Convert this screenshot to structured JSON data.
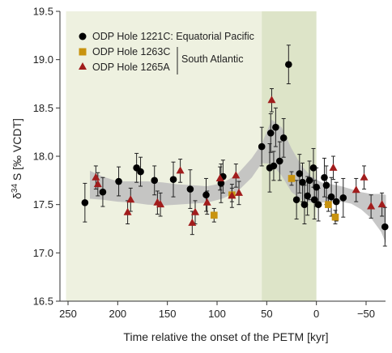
{
  "chart_data": {
    "type": "scatter",
    "xlabel": "Time relative the onset of the PETM [kyr]",
    "ylabel_main": "δ",
    "ylabel_sup": "34",
    "ylabel_rest": " S [‰ VCDT]",
    "xlim": [
      250,
      -55
    ],
    "ylim": [
      16.5,
      19.5
    ],
    "x_ticks": [
      250,
      200,
      150,
      100,
      50,
      0,
      -50
    ],
    "x_tick_labels": [
      "250",
      "200",
      "150",
      "100",
      "50",
      "0",
      "−50"
    ],
    "y_ticks": [
      16.5,
      17.0,
      17.5,
      18.0,
      18.5,
      19.0,
      19.5
    ],
    "y_tick_labels": [
      "16.5",
      "17.0",
      "17.5",
      "18.0",
      "18.5",
      "19.0",
      "19.5"
    ],
    "shaded_regions": [
      {
        "x_from": 252,
        "x_to": 55,
        "color": "#eef1e0"
      },
      {
        "x_from": 55,
        "x_to": 0,
        "color": "#dde4c8"
      }
    ],
    "legend": {
      "position": "top-left",
      "group_label": "South Atlantic",
      "entries": [
        {
          "label": "ODP Hole 1221C: Equatorial Pacific",
          "marker": "circle",
          "color": "#000000"
        },
        {
          "label": "ODP Hole 1263C",
          "marker": "square",
          "color": "#c8930f"
        },
        {
          "label": "ODP Hole 1265A",
          "marker": "triangle",
          "color": "#a11c1c"
        }
      ]
    },
    "series": [
      {
        "name": "ODP Hole 1221C: Equatorial Pacific",
        "marker": "circle",
        "color": "#000000",
        "points": [
          {
            "x": 233,
            "y": 17.52,
            "err": 0.2
          },
          {
            "x": 215,
            "y": 17.63,
            "err": 0.15
          },
          {
            "x": 199,
            "y": 17.74,
            "err": 0.15
          },
          {
            "x": 181,
            "y": 17.88,
            "err": 0.15
          },
          {
            "x": 177,
            "y": 17.84,
            "err": 0.15
          },
          {
            "x": 163,
            "y": 17.75,
            "err": 0.15
          },
          {
            "x": 144,
            "y": 17.76,
            "err": 0.18
          },
          {
            "x": 127,
            "y": 17.66,
            "err": 0.2
          },
          {
            "x": 111,
            "y": 17.6,
            "err": 0.17
          },
          {
            "x": 96,
            "y": 17.72,
            "err": 0.2
          },
          {
            "x": 94,
            "y": 17.79,
            "err": 0.17
          },
          {
            "x": 55,
            "y": 18.1,
            "err": 0.2
          },
          {
            "x": 47,
            "y": 17.88,
            "err": 0.25
          },
          {
            "x": 46,
            "y": 18.24,
            "err": 0.2
          },
          {
            "x": 43,
            "y": 17.9,
            "err": 0.15
          },
          {
            "x": 41,
            "y": 18.3,
            "err": 0.2
          },
          {
            "x": 37,
            "y": 17.95,
            "err": 0.2
          },
          {
            "x": 33,
            "y": 18.19,
            "err": 0.2
          },
          {
            "x": 28,
            "y": 18.95,
            "err": 0.2
          },
          {
            "x": 20,
            "y": 17.55,
            "err": 0.2
          },
          {
            "x": 17,
            "y": 17.82,
            "err": 0.2
          },
          {
            "x": 14,
            "y": 17.73,
            "err": 0.2
          },
          {
            "x": 12,
            "y": 17.5,
            "err": 0.2
          },
          {
            "x": 9,
            "y": 17.59,
            "err": 0.2
          },
          {
            "x": 7,
            "y": 17.75,
            "err": 0.2
          },
          {
            "x": 3,
            "y": 17.88,
            "err": 0.2
          },
          {
            "x": 2,
            "y": 17.55,
            "err": 0.2
          },
          {
            "x": 0,
            "y": 17.68,
            "err": 0.2
          },
          {
            "x": -2,
            "y": 17.5,
            "err": 0.17
          },
          {
            "x": -8,
            "y": 17.78,
            "err": 0.2
          },
          {
            "x": -10,
            "y": 17.7,
            "err": 0.2
          },
          {
            "x": -15,
            "y": 17.58,
            "err": 0.2
          },
          {
            "x": -20,
            "y": 17.53,
            "err": 0.2
          },
          {
            "x": -27,
            "y": 17.57,
            "err": 0.2
          },
          {
            "x": -69,
            "y": 17.27,
            "err": 0.2
          }
        ]
      },
      {
        "name": "ODP Hole 1263C",
        "marker": "square",
        "color": "#c8930f",
        "points": [
          {
            "x": 103,
            "y": 17.39,
            "err": 0.07
          },
          {
            "x": 85,
            "y": 17.6,
            "err": 0.07
          },
          {
            "x": 25,
            "y": 17.77,
            "err": 0.07
          },
          {
            "x": -12,
            "y": 17.5,
            "err": 0.07
          },
          {
            "x": -19,
            "y": 17.37,
            "err": 0.07
          }
        ]
      },
      {
        "name": "ODP Hole 1265A",
        "marker": "triangle",
        "color": "#a11c1c",
        "points": [
          {
            "x": 222,
            "y": 17.78,
            "err": 0.12
          },
          {
            "x": 220,
            "y": 17.71,
            "err": 0.12
          },
          {
            "x": 190,
            "y": 17.42,
            "err": 0.12
          },
          {
            "x": 187,
            "y": 17.55,
            "err": 0.12
          },
          {
            "x": 160,
            "y": 17.52,
            "err": 0.12
          },
          {
            "x": 157,
            "y": 17.5,
            "err": 0.12
          },
          {
            "x": 137,
            "y": 17.85,
            "err": 0.12
          },
          {
            "x": 125,
            "y": 17.31,
            "err": 0.12
          },
          {
            "x": 122,
            "y": 17.42,
            "err": 0.12
          },
          {
            "x": 110,
            "y": 17.52,
            "err": 0.12
          },
          {
            "x": 97,
            "y": 17.77,
            "err": 0.12
          },
          {
            "x": 85,
            "y": 17.59,
            "err": 0.12
          },
          {
            "x": 81,
            "y": 17.8,
            "err": 0.12
          },
          {
            "x": 78,
            "y": 17.62,
            "err": 0.12
          },
          {
            "x": 45,
            "y": 18.58,
            "err": 0.12
          },
          {
            "x": -17,
            "y": 17.88,
            "err": 0.12
          },
          {
            "x": -40,
            "y": 17.65,
            "err": 0.12
          },
          {
            "x": -48,
            "y": 17.78,
            "err": 0.12
          },
          {
            "x": -55,
            "y": 17.48,
            "err": 0.12
          },
          {
            "x": -66,
            "y": 17.5,
            "err": 0.12
          }
        ]
      }
    ],
    "smooth_band": {
      "color": "#bdbdbd",
      "x": [
        228,
        215,
        200,
        185,
        170,
        155,
        140,
        125,
        110,
        95,
        80,
        65,
        55,
        45,
        35,
        25,
        15,
        5,
        -5,
        -15,
        -25,
        -35,
        -45,
        -55,
        -65,
        -70
      ],
      "lower": [
        17.56,
        17.55,
        17.53,
        17.52,
        17.5,
        17.49,
        17.5,
        17.51,
        17.52,
        17.56,
        17.63,
        17.78,
        17.93,
        17.92,
        17.8,
        17.63,
        17.55,
        17.52,
        17.52,
        17.53,
        17.53,
        17.51,
        17.45,
        17.36,
        17.22,
        17.1
      ],
      "upper": [
        17.85,
        17.79,
        17.74,
        17.74,
        17.74,
        17.73,
        17.71,
        17.7,
        17.69,
        17.72,
        17.81,
        17.98,
        18.13,
        18.38,
        18.3,
        18.08,
        17.9,
        17.79,
        17.73,
        17.71,
        17.69,
        17.66,
        17.63,
        17.61,
        17.61,
        17.6
      ]
    }
  }
}
